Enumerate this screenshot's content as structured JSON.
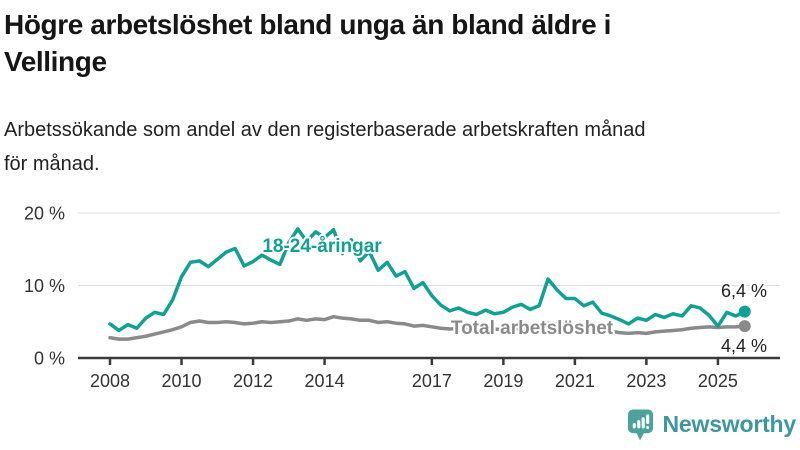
{
  "title": {
    "full": "Högre arbetslöshet bland unga än bland äldre i Vellinge",
    "lines": [
      "Högre arbetslöshet bland unga än bland äldre i",
      "Vellinge"
    ]
  },
  "subtitle": {
    "full": "Arbetssökande som andel av den registerbaserade arbetskraften månad för månad.",
    "lines": [
      "Arbetssökande som andel av den registerbaserade arbetskraften månad",
      "för månad."
    ]
  },
  "colors": {
    "axis": "#3a3a3a",
    "grid": "#dddddd",
    "tick_text": "#333333",
    "young_series": "#10a094",
    "total_series": "#8a8a8a",
    "logo_icon": "#4ba39c",
    "logo_text": "#3d97a0"
  },
  "branding": {
    "name": "Newsworthy",
    "icon": "bar-chart-speech-bubble-icon"
  },
  "chart_data": {
    "type": "line",
    "unit": "%",
    "x_label": "",
    "y_label": "",
    "x_start": 2008.0,
    "x_step": 0.25,
    "x_end": 2025.75,
    "ylim": [
      0,
      21
    ],
    "grid": "horizontal-only",
    "legend_position": "inline-labels-on-lines",
    "x_ticks": [
      2008,
      2010,
      2012,
      2014,
      2017,
      2019,
      2021,
      2023,
      2025
    ],
    "y_ticks": [
      {
        "value": 0,
        "label": "0 %"
      },
      {
        "value": 10,
        "label": "10 %"
      },
      {
        "value": 20,
        "label": "20 %"
      }
    ],
    "y_gridlines": [
      10,
      20
    ],
    "series": [
      {
        "name": "18-24-åringar",
        "color": "#10a094",
        "end_label": "6,4 %",
        "last_value": 6.4,
        "values": [
          4.7,
          3.8,
          4.6,
          4.1,
          5.5,
          6.3,
          6.0,
          8.0,
          11.2,
          13.2,
          13.4,
          12.6,
          13.6,
          14.6,
          15.1,
          12.7,
          13.3,
          14.2,
          13.5,
          12.9,
          15.9,
          17.8,
          16.1,
          17.4,
          16.6,
          17.7,
          14.4,
          16.3,
          13.4,
          14.7,
          12.1,
          13.2,
          11.3,
          11.9,
          9.6,
          10.4,
          8.6,
          7.3,
          6.5,
          6.9,
          6.3,
          6.0,
          6.6,
          6.1,
          6.3,
          7.0,
          7.4,
          6.7,
          7.2,
          10.9,
          9.4,
          8.2,
          8.2,
          7.2,
          7.7,
          6.2,
          5.8,
          5.3,
          4.7,
          5.5,
          5.2,
          6.0,
          5.6,
          6.1,
          5.8,
          7.2,
          6.9,
          5.9,
          4.4,
          6.3,
          5.8,
          6.4
        ]
      },
      {
        "name": "Total arbetslöshet",
        "color": "#8a8a8a",
        "end_label": "4,4 %",
        "last_value": 4.4,
        "values": [
          2.8,
          2.6,
          2.6,
          2.8,
          3.0,
          3.3,
          3.6,
          3.9,
          4.3,
          4.9,
          5.1,
          4.9,
          4.9,
          5.0,
          4.9,
          4.7,
          4.8,
          5.0,
          4.9,
          5.0,
          5.1,
          5.4,
          5.2,
          5.4,
          5.3,
          5.7,
          5.5,
          5.4,
          5.2,
          5.2,
          4.9,
          5.0,
          4.8,
          4.7,
          4.4,
          4.5,
          4.3,
          4.1,
          4.0,
          4.1,
          4.0,
          3.9,
          3.9,
          4.0,
          3.9,
          4.0,
          4.1,
          4.2,
          4.3,
          4.8,
          4.7,
          4.6,
          4.5,
          4.3,
          4.1,
          3.9,
          3.7,
          3.5,
          3.4,
          3.5,
          3.4,
          3.6,
          3.7,
          3.8,
          3.9,
          4.1,
          4.2,
          4.3,
          4.2,
          4.3,
          4.3,
          4.4
        ]
      }
    ]
  }
}
